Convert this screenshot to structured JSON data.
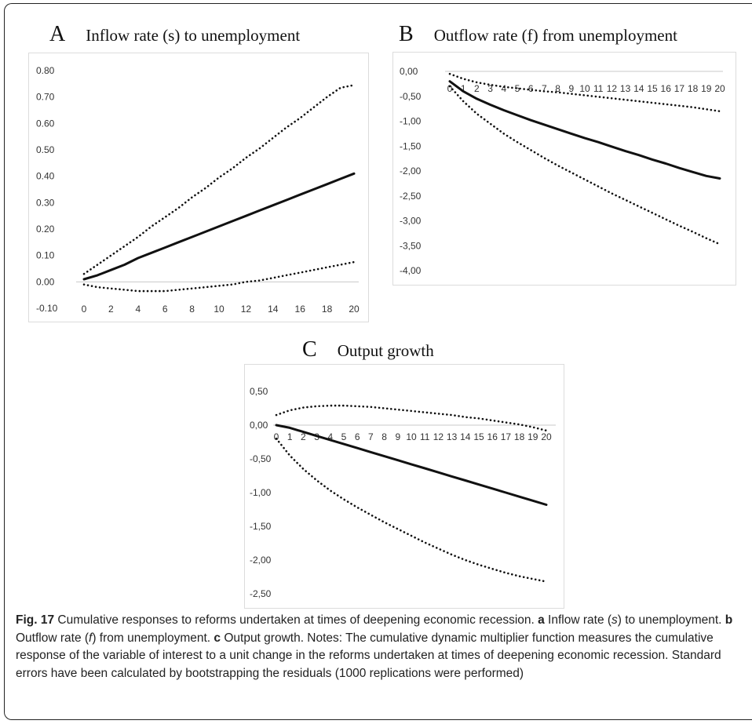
{
  "panels": [
    {
      "letter": "A",
      "title": "Inflow rate (s) to unemployment",
      "chart_data": {
        "type": "line",
        "title": "Inflow rate (s) to unemployment",
        "x": [
          0,
          1,
          2,
          3,
          4,
          5,
          6,
          7,
          8,
          9,
          10,
          11,
          12,
          13,
          14,
          15,
          16,
          17,
          18,
          19,
          20
        ],
        "x_tick_labels": [
          "0",
          "2",
          "4",
          "6",
          "8",
          "10",
          "12",
          "14",
          "16",
          "18",
          "20"
        ],
        "y_tick_labels": [
          "0.80",
          "0.70",
          "0.60",
          "0.50",
          "0.40",
          "0.30",
          "0.20",
          "0.10",
          "0.00",
          "-0.10"
        ],
        "ylim": [
          -0.1,
          0.8
        ],
        "x_axis_at": 0,
        "grid": false,
        "series": [
          {
            "style": "solid",
            "values": [
              0.01,
              0.025,
              0.045,
              0.065,
              0.09,
              0.11,
              0.13,
              0.15,
              0.17,
              0.19,
              0.21,
              0.23,
              0.25,
              0.27,
              0.29,
              0.31,
              0.33,
              0.35,
              0.37,
              0.39,
              0.41
            ]
          },
          {
            "style": "dotted",
            "values": [
              0.03,
              0.065,
              0.1,
              0.135,
              0.17,
              0.21,
              0.245,
              0.28,
              0.32,
              0.355,
              0.395,
              0.43,
              0.47,
              0.505,
              0.545,
              0.585,
              0.62,
              0.66,
              0.7,
              0.735,
              0.745
            ]
          },
          {
            "style": "dotted",
            "values": [
              -0.01,
              -0.02,
              -0.025,
              -0.03,
              -0.035,
              -0.035,
              -0.035,
              -0.03,
              -0.025,
              -0.02,
              -0.015,
              -0.01,
              0.0,
              0.005,
              0.015,
              0.025,
              0.035,
              0.045,
              0.055,
              0.065,
              0.075
            ]
          }
        ]
      }
    },
    {
      "letter": "B",
      "title": "Outflow rate (f) from unemployment",
      "chart_data": {
        "type": "line",
        "title": "Outflow rate (f) from unemployment",
        "x": [
          0,
          1,
          2,
          3,
          4,
          5,
          6,
          7,
          8,
          9,
          10,
          11,
          12,
          13,
          14,
          15,
          16,
          17,
          18,
          19,
          20
        ],
        "x_tick_labels": [
          "0",
          "1",
          "2",
          "3",
          "4",
          "5",
          "6",
          "7",
          "8",
          "9",
          "10",
          "11",
          "12",
          "13",
          "14",
          "15",
          "16",
          "17",
          "18",
          "19",
          "20"
        ],
        "y_tick_labels": [
          "0,00",
          "-0,50",
          "-1,00",
          "-1,50",
          "-2,00",
          "-2,50",
          "-3,00",
          "-3,50",
          "-4,00"
        ],
        "ylim": [
          -4.0,
          0.0
        ],
        "x_axis_at": 0,
        "grid": false,
        "series": [
          {
            "style": "solid",
            "values": [
              -0.2,
              -0.4,
              -0.55,
              -0.67,
              -0.78,
              -0.88,
              -0.98,
              -1.07,
              -1.16,
              -1.25,
              -1.34,
              -1.42,
              -1.51,
              -1.6,
              -1.68,
              -1.77,
              -1.85,
              -1.94,
              -2.02,
              -2.1,
              -2.15
            ]
          },
          {
            "style": "dotted",
            "values": [
              -0.05,
              -0.15,
              -0.22,
              -0.27,
              -0.31,
              -0.34,
              -0.37,
              -0.4,
              -0.42,
              -0.45,
              -0.48,
              -0.51,
              -0.54,
              -0.57,
              -0.6,
              -0.63,
              -0.66,
              -0.69,
              -0.72,
              -0.76,
              -0.8
            ]
          },
          {
            "style": "dotted",
            "values": [
              -0.3,
              -0.6,
              -0.85,
              -1.05,
              -1.25,
              -1.42,
              -1.58,
              -1.74,
              -1.89,
              -2.03,
              -2.17,
              -2.31,
              -2.45,
              -2.58,
              -2.71,
              -2.84,
              -2.97,
              -3.1,
              -3.22,
              -3.35,
              -3.47
            ]
          }
        ]
      }
    },
    {
      "letter": "C",
      "title": "Output growth",
      "chart_data": {
        "type": "line",
        "title": "Output growth",
        "x": [
          0,
          1,
          2,
          3,
          4,
          5,
          6,
          7,
          8,
          9,
          10,
          11,
          12,
          13,
          14,
          15,
          16,
          17,
          18,
          19,
          20
        ],
        "x_tick_labels": [
          "0",
          "1",
          "2",
          "3",
          "4",
          "5",
          "6",
          "7",
          "8",
          "9",
          "10",
          "11",
          "12",
          "13",
          "14",
          "15",
          "16",
          "17",
          "18",
          "19",
          "20"
        ],
        "y_tick_labels": [
          "0,50",
          "0,00",
          "-0,50",
          "-1,00",
          "-1,50",
          "-2,00",
          "-2,50"
        ],
        "ylim": [
          -2.5,
          0.5
        ],
        "x_axis_at": 0,
        "grid": false,
        "series": [
          {
            "style": "solid",
            "values": [
              0.0,
              -0.04,
              -0.1,
              -0.16,
              -0.22,
              -0.28,
              -0.34,
              -0.4,
              -0.46,
              -0.52,
              -0.58,
              -0.64,
              -0.7,
              -0.76,
              -0.82,
              -0.88,
              -0.94,
              -1.0,
              -1.06,
              -1.12,
              -1.18
            ]
          },
          {
            "style": "dotted",
            "values": [
              0.15,
              0.22,
              0.26,
              0.28,
              0.29,
              0.29,
              0.28,
              0.27,
              0.25,
              0.23,
              0.21,
              0.19,
              0.17,
              0.15,
              0.12,
              0.1,
              0.07,
              0.04,
              0.01,
              -0.03,
              -0.08
            ]
          },
          {
            "style": "dotted",
            "values": [
              -0.2,
              -0.45,
              -0.65,
              -0.82,
              -0.97,
              -1.1,
              -1.22,
              -1.33,
              -1.44,
              -1.54,
              -1.64,
              -1.74,
              -1.83,
              -1.92,
              -2.0,
              -2.07,
              -2.13,
              -2.19,
              -2.24,
              -2.28,
              -2.32
            ]
          }
        ]
      }
    }
  ],
  "caption": {
    "fig_label": "Fig. 17",
    "fig_text": " Cumulative responses to reforms undertaken at times of deepening economic recession. ",
    "a_label": "a",
    "a_text_1": " Inflow rate (",
    "a_var": "s",
    "a_text_2": ") to unemployment. ",
    "b_label": "b",
    "b_text_1": " Outflow rate (",
    "b_var": "f",
    "b_text_2": ") from unemployment. ",
    "c_label": "c",
    "c_text": " Output growth. Notes: The cumulative dynamic multiplier function measures the cumulative response of the variable of interest to a unit change in the reforms undertaken at times of deepening economic recession. Standard errors have been calculated by bootstrapping the residuals (1000 replications were performed)"
  }
}
